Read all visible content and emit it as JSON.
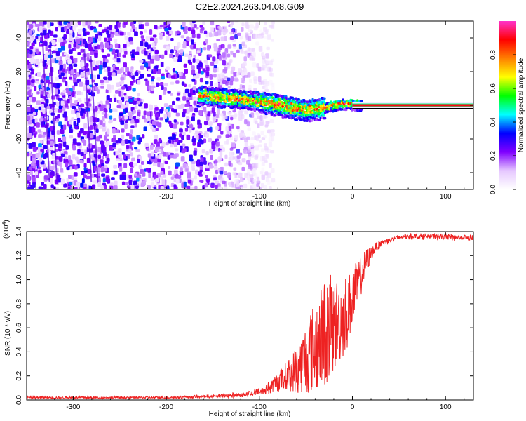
{
  "title": "C2E2.2024.263.04.08.G09",
  "chart_data": [
    {
      "type": "heatmap",
      "xlabel": "Height of straight line (km)",
      "ylabel": "Frequency (Hz)",
      "xlim": [
        -350,
        130
      ],
      "ylim": [
        -50,
        50
      ],
      "xticks": [
        -300,
        -200,
        -100,
        0,
        100
      ],
      "yticks": [
        -40,
        -20,
        0,
        20,
        40
      ],
      "colorbar": {
        "label": "Normalized spectral amplitude",
        "range": [
          0,
          1
        ],
        "ticks": [
          "0.0",
          "0.2",
          "0.4",
          "0.6",
          "0.8"
        ],
        "tick_values": [
          0.0,
          0.2,
          0.4,
          0.6,
          0.8
        ],
        "colormap": [
          "#ffffff",
          "#e6c8ff",
          "#8000ff",
          "#0000ff",
          "#00ffff",
          "#00ff00",
          "#ffff00",
          "#ff8000",
          "#ff0000",
          "#ff33cc"
        ]
      },
      "signal_track": [
        {
          "x": -165,
          "f": 6
        },
        {
          "x": -150,
          "f": 5
        },
        {
          "x": -130,
          "f": 4
        },
        {
          "x": -110,
          "f": 3
        },
        {
          "x": -90,
          "f": 1
        },
        {
          "x": -70,
          "f": -1
        },
        {
          "x": -50,
          "f": -3
        },
        {
          "x": -35,
          "f": -2
        },
        {
          "x": -20,
          "f": 0
        },
        {
          "x": -5,
          "f": 1
        },
        {
          "x": 10,
          "f": 0
        },
        {
          "x": 130,
          "f": 0
        }
      ],
      "noise_edge_x": -100
    },
    {
      "type": "line",
      "xlabel": "Height of straight line (km)",
      "ylabel": "SNR (10 * v/v)",
      "scale_label": "(x10",
      "scale_exponent": "4",
      "scale_suffix": ")",
      "xlim": [
        -350,
        130
      ],
      "ylim": [
        0,
        1.4
      ],
      "xticks": [
        -300,
        -200,
        -100,
        0,
        100
      ],
      "yticks": [
        "0.0",
        "0.2",
        "0.4",
        "0.6",
        "0.8",
        "1.0",
        "1.2",
        "1.4"
      ],
      "ytick_values": [
        0,
        0.2,
        0.4,
        0.6,
        0.8,
        1.0,
        1.2,
        1.4
      ],
      "series": [
        {
          "color": "#ee2222",
          "x": [
            -350,
            -300,
            -250,
            -200,
            -150,
            -120,
            -100,
            -90,
            -80,
            -70,
            -60,
            -50,
            -45,
            -40,
            -35,
            -30,
            -25,
            -20,
            -15,
            -10,
            -5,
            0,
            5,
            10,
            15,
            20,
            25,
            30,
            40,
            50,
            60,
            70,
            80,
            90,
            100,
            110,
            120,
            130
          ],
          "values": [
            0.02,
            0.02,
            0.02,
            0.02,
            0.03,
            0.04,
            0.07,
            0.1,
            0.15,
            0.2,
            0.25,
            0.35,
            0.4,
            0.45,
            0.5,
            0.55,
            0.6,
            0.62,
            0.65,
            0.68,
            0.75,
            0.85,
            0.95,
            1.05,
            1.15,
            1.22,
            1.27,
            1.3,
            1.33,
            1.35,
            1.36,
            1.36,
            1.36,
            1.36,
            1.36,
            1.35,
            1.35,
            1.35
          ],
          "spread": [
            0,
            0,
            0,
            0,
            0.01,
            0.02,
            0.03,
            0.05,
            0.08,
            0.12,
            0.2,
            0.3,
            0.35,
            0.4,
            0.42,
            0.45,
            0.45,
            0.4,
            0.35,
            0.35,
            0.3,
            0.25,
            0.2,
            0.15,
            0.1,
            0.06,
            0.04,
            0.03,
            0.02,
            0.02,
            0.02,
            0.02,
            0.02,
            0.02,
            0.02,
            0.02,
            0.02,
            0.02
          ]
        }
      ]
    }
  ]
}
